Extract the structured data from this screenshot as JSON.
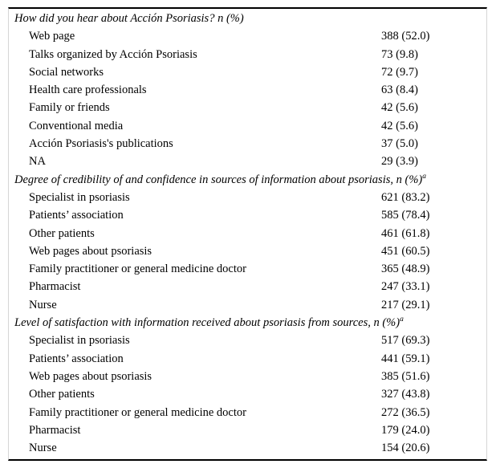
{
  "table": {
    "sections": [
      {
        "title": "How did you hear about Acción Psoriasis? n (%)",
        "sup": "",
        "rows": [
          {
            "label": "Web page",
            "value": "388 (52.0)"
          },
          {
            "label": "Talks organized by Acción Psoriasis",
            "value": "73 (9.8)"
          },
          {
            "label": "Social networks",
            "value": "72 (9.7)"
          },
          {
            "label": "Health care professionals",
            "value": "63 (8.4)"
          },
          {
            "label": "Family or friends",
            "value": "42 (5.6)"
          },
          {
            "label": "Conventional media",
            "value": "42 (5.6)"
          },
          {
            "label": "Acción Psoriasis's publications",
            "value": "37 (5.0)"
          },
          {
            "label": "NA",
            "value": "29 (3.9)"
          }
        ]
      },
      {
        "title": "Degree of credibility of and confidence in sources of information about psoriasis, n (%)",
        "sup": "a",
        "rows": [
          {
            "label": "Specialist in psoriasis",
            "value": "621 (83.2)"
          },
          {
            "label": "Patients’ association",
            "value": "585 (78.4)"
          },
          {
            "label": "Other patients",
            "value": "461 (61.8)"
          },
          {
            "label": "Web pages about psoriasis",
            "value": "451 (60.5)"
          },
          {
            "label": "Family practitioner or general medicine doctor",
            "value": "365 (48.9)"
          },
          {
            "label": "Pharmacist",
            "value": "247 (33.1)"
          },
          {
            "label": "Nurse",
            "value": "217 (29.1)"
          }
        ]
      },
      {
        "title": "Level of satisfaction with information received about psoriasis from sources, n (%)",
        "sup": "a",
        "rows": [
          {
            "label": "Specialist in psoriasis",
            "value": "517 (69.3)"
          },
          {
            "label": "Patients’ association",
            "value": "441 (59.1)"
          },
          {
            "label": "Web pages about psoriasis",
            "value": "385 (51.6)"
          },
          {
            "label": "Other patients",
            "value": "327 (43.8)"
          },
          {
            "label": "Family practitioner or general medicine doctor",
            "value": "272 (36.5)"
          },
          {
            "label": "Pharmacist",
            "value": "179 (24.0)"
          },
          {
            "label": "Nurse",
            "value": "154 (20.6)"
          }
        ]
      }
    ]
  }
}
